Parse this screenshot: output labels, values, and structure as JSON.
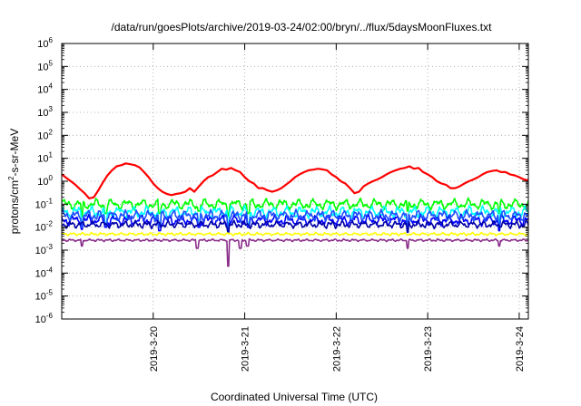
{
  "chart_data": {
    "type": "line",
    "title": "/data/run/goesPlots/archive/2019-03-24/02:00/bryn/../flux/5daysMoonFluxes.txt",
    "xlabel": "Coordinated Universal Time (UTC)",
    "ylabel": "protons/cm2-s-sr-MeV",
    "ylabel_parts": {
      "before": "protons/cm",
      "sup": "2",
      "after": "-s-sr-MeV"
    },
    "yscale": "log",
    "ylim_exponents": [
      -6,
      6
    ],
    "ytick_base": "10",
    "ytick_exponents": [
      "-6",
      "-5",
      "-4",
      "-3",
      "-2",
      "-1",
      "0",
      "1",
      "2",
      "3",
      "4",
      "5",
      "6"
    ],
    "xlim_days": [
      0,
      5.1
    ],
    "xticks": [
      {
        "label": "2019-3-20",
        "day": 1
      },
      {
        "label": "2019-3-21",
        "day": 2
      },
      {
        "label": "2019-3-22",
        "day": 3
      },
      {
        "label": "2019-3-23",
        "day": 4
      },
      {
        "label": "2019-3-24",
        "day": 5
      }
    ],
    "grid": true,
    "legend": "none",
    "series": [
      {
        "color": "#ff0000",
        "points": [
          [
            0.0,
            2.0
          ],
          [
            0.05,
            1.4
          ],
          [
            0.1,
            1.0
          ],
          [
            0.15,
            0.7
          ],
          [
            0.2,
            0.45
          ],
          [
            0.25,
            0.3
          ],
          [
            0.3,
            0.18
          ],
          [
            0.35,
            0.2
          ],
          [
            0.4,
            0.4
          ],
          [
            0.45,
            0.9
          ],
          [
            0.5,
            1.8
          ],
          [
            0.55,
            3.0
          ],
          [
            0.6,
            4.5
          ],
          [
            0.65,
            5.0
          ],
          [
            0.7,
            6.0
          ],
          [
            0.75,
            5.5
          ],
          [
            0.8,
            5.0
          ],
          [
            0.85,
            4.0
          ],
          [
            0.9,
            2.5
          ],
          [
            0.95,
            1.5
          ],
          [
            1.0,
            0.8
          ],
          [
            1.05,
            0.5
          ],
          [
            1.1,
            0.35
          ],
          [
            1.15,
            0.28
          ],
          [
            1.2,
            0.25
          ],
          [
            1.25,
            0.28
          ],
          [
            1.3,
            0.3
          ],
          [
            1.35,
            0.35
          ],
          [
            1.4,
            0.5
          ],
          [
            1.45,
            0.35
          ],
          [
            1.5,
            0.6
          ],
          [
            1.55,
            1.0
          ],
          [
            1.6,
            1.5
          ],
          [
            1.65,
            1.8
          ],
          [
            1.7,
            2.5
          ],
          [
            1.75,
            3.5
          ],
          [
            1.8,
            3.2
          ],
          [
            1.85,
            3.8
          ],
          [
            1.9,
            3.0
          ],
          [
            1.95,
            2.5
          ],
          [
            2.0,
            1.5
          ],
          [
            2.05,
            1.0
          ],
          [
            2.1,
            0.8
          ],
          [
            2.15,
            0.5
          ],
          [
            2.2,
            0.5
          ],
          [
            2.25,
            0.4
          ],
          [
            2.3,
            0.35
          ],
          [
            2.35,
            0.4
          ],
          [
            2.4,
            0.5
          ],
          [
            2.45,
            0.7
          ],
          [
            2.5,
            1.0
          ],
          [
            2.55,
            1.5
          ],
          [
            2.6,
            2.0
          ],
          [
            2.65,
            2.5
          ],
          [
            2.7,
            3.0
          ],
          [
            2.75,
            3.2
          ],
          [
            2.8,
            3.5
          ],
          [
            2.85,
            3.3
          ],
          [
            2.9,
            3.0
          ],
          [
            2.95,
            2.0
          ],
          [
            3.0,
            1.5
          ],
          [
            3.05,
            1.0
          ],
          [
            3.1,
            0.8
          ],
          [
            3.15,
            0.5
          ],
          [
            3.2,
            0.3
          ],
          [
            3.25,
            0.35
          ],
          [
            3.3,
            0.6
          ],
          [
            3.35,
            0.8
          ],
          [
            3.4,
            1.0
          ],
          [
            3.45,
            1.2
          ],
          [
            3.5,
            1.5
          ],
          [
            3.55,
            2.0
          ],
          [
            3.6,
            2.5
          ],
          [
            3.65,
            3.0
          ],
          [
            3.7,
            3.5
          ],
          [
            3.75,
            3.8
          ],
          [
            3.8,
            4.5
          ],
          [
            3.85,
            3.5
          ],
          [
            3.9,
            3.8
          ],
          [
            3.95,
            2.5
          ],
          [
            4.0,
            2.0
          ],
          [
            4.05,
            1.5
          ],
          [
            4.1,
            1.0
          ],
          [
            4.15,
            0.8
          ],
          [
            4.2,
            0.7
          ],
          [
            4.25,
            0.5
          ],
          [
            4.3,
            0.5
          ],
          [
            4.35,
            0.6
          ],
          [
            4.4,
            0.8
          ],
          [
            4.45,
            1.0
          ],
          [
            4.5,
            1.2
          ],
          [
            4.55,
            1.5
          ],
          [
            4.6,
            2.0
          ],
          [
            4.65,
            2.5
          ],
          [
            4.7,
            2.8
          ],
          [
            4.75,
            3.0
          ],
          [
            4.8,
            2.5
          ],
          [
            4.85,
            2.5
          ],
          [
            4.9,
            2.0
          ],
          [
            4.95,
            1.8
          ],
          [
            5.0,
            1.5
          ],
          [
            5.05,
            1.2
          ],
          [
            5.1,
            1.1
          ]
        ]
      },
      {
        "color": "#00ff00",
        "base": 0.1,
        "amp": 0.22,
        "freq": 37,
        "phase": 0.3,
        "dips": [
          [
            0.22,
            0.03
          ],
          [
            0.48,
            0.04
          ],
          [
            1.07,
            0.04
          ],
          [
            1.5,
            0.05
          ],
          [
            1.82,
            0.03
          ],
          [
            2.04,
            0.04
          ],
          [
            3.78,
            0.05
          ],
          [
            4.78,
            0.04
          ]
        ]
      },
      {
        "color": "#00ffff",
        "base": 0.045,
        "amp": 0.25,
        "freq": 41,
        "phase": 1.1,
        "dips": [
          [
            0.22,
            0.012
          ],
          [
            0.48,
            0.015
          ],
          [
            1.07,
            0.012
          ],
          [
            1.5,
            0.02
          ],
          [
            1.82,
            0.008
          ],
          [
            2.04,
            0.015
          ],
          [
            3.78,
            0.012
          ],
          [
            4.78,
            0.012
          ]
        ]
      },
      {
        "color": "#0000ff",
        "base": 0.02,
        "amp": 0.22,
        "freq": 43,
        "phase": 2.0,
        "dips": [
          [
            0.22,
            0.008
          ],
          [
            0.48,
            0.01
          ],
          [
            1.07,
            0.007
          ],
          [
            1.5,
            0.01
          ],
          [
            1.82,
            0.006
          ],
          [
            2.04,
            0.01
          ],
          [
            3.78,
            0.008
          ],
          [
            4.78,
            0.007
          ]
        ]
      },
      {
        "color": "#1f4fff",
        "base": 0.032,
        "amp": 0.22,
        "freq": 47,
        "phase": 0.7,
        "dips": [
          [
            0.22,
            0.01
          ],
          [
            0.48,
            0.012
          ],
          [
            1.07,
            0.01
          ],
          [
            1.5,
            0.014
          ],
          [
            1.82,
            0.008
          ],
          [
            2.04,
            0.012
          ],
          [
            3.78,
            0.01
          ],
          [
            4.78,
            0.01
          ]
        ]
      },
      {
        "color": "#0000a8",
        "base": 0.013,
        "amp": 0.15,
        "freq": 53,
        "phase": 2.6,
        "dips": [
          [
            1.82,
            0.006
          ],
          [
            3.78,
            0.006
          ]
        ]
      },
      {
        "color": "#ffff00",
        "base": 0.005,
        "amp": 0.06,
        "freq": 59,
        "phase": 0.9,
        "dips": []
      },
      {
        "color": "#8b2e8b",
        "base": 0.0027,
        "amp": 0.05,
        "freq": 61,
        "phase": 1.7,
        "dips": [
          [
            0.22,
            0.0015
          ],
          [
            1.48,
            0.0012
          ],
          [
            1.82,
            0.0002
          ],
          [
            1.95,
            0.0012
          ],
          [
            2.03,
            0.0015
          ],
          [
            3.78,
            0.0012
          ],
          [
            4.78,
            0.0015
          ]
        ]
      }
    ]
  }
}
